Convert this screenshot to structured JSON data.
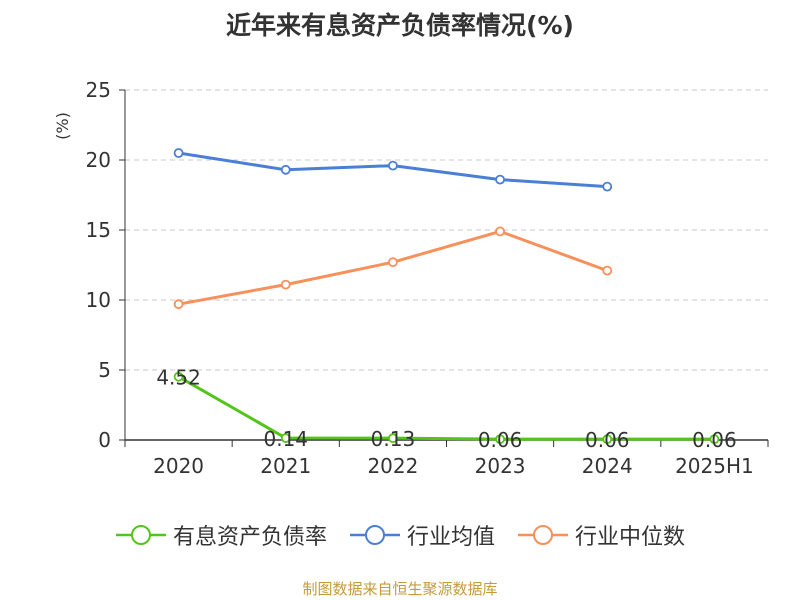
{
  "title": "近年来有息资产负债率情况(%)",
  "source": "制图数据来自恒生聚源数据库",
  "chart_data": {
    "type": "line",
    "title": "近年来有息资产负债率情况(%)",
    "ylabel": "(%)",
    "xlabel": "",
    "categories": [
      "2020",
      "2021",
      "2022",
      "2023",
      "2024",
      "2025H1"
    ],
    "ylim": [
      0,
      25
    ],
    "yticks": [
      0,
      5,
      10,
      15,
      20,
      25
    ],
    "grid": true,
    "legend_position": "bottom",
    "series": [
      {
        "name": "有息资产负债率",
        "color": "#52c41a",
        "values": [
          4.52,
          0.14,
          0.13,
          0.06,
          0.06,
          0.06
        ],
        "labels": [
          "4.52",
          "0.14",
          "0.13",
          "0.06",
          "0.06",
          "0.06"
        ]
      },
      {
        "name": "行业均值",
        "color": "#4a7fd6",
        "values": [
          20.5,
          19.3,
          19.6,
          18.6,
          18.1,
          null
        ]
      },
      {
        "name": "行业中位数",
        "color": "#f7905a",
        "values": [
          9.7,
          11.1,
          12.7,
          14.9,
          12.1,
          null
        ]
      }
    ]
  }
}
